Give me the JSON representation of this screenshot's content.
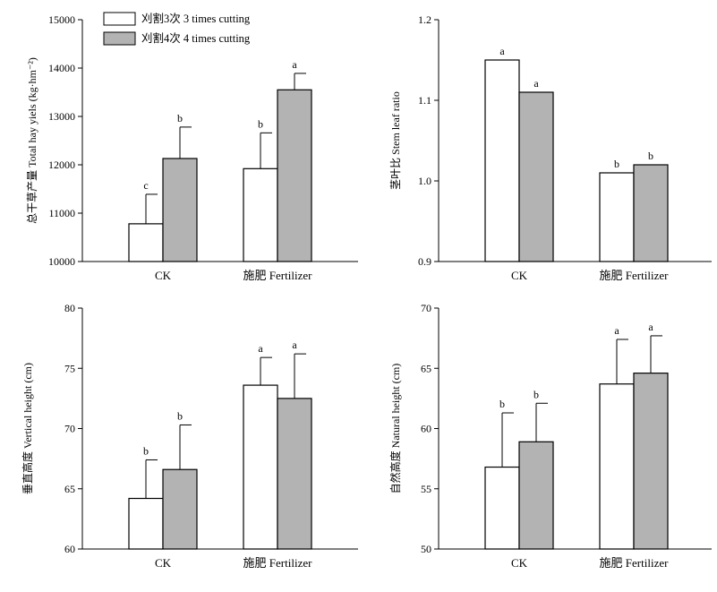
{
  "colors": {
    "series_1": "#ffffff",
    "series_2": "#b3b3b3",
    "stroke": "#000000"
  },
  "legend": {
    "items": [
      {
        "label": "刈割3次 3 times cutting",
        "color": "#ffffff"
      },
      {
        "label": "刈割4次 4 times cutting",
        "color": "#b3b3b3"
      }
    ],
    "placement": "top-left of first panel"
  },
  "chart_data": [
    {
      "type": "bar",
      "ylabel": "总干草产量 Total hay yiels (kg·hm⁻²)",
      "categories": [
        "CK",
        "施肥 Fertilizer"
      ],
      "ylim": [
        10000,
        15000
      ],
      "yticks": [
        10000,
        11000,
        12000,
        13000,
        14000,
        15000
      ],
      "tick_labels": [
        "10000",
        "11000",
        "12000",
        "13000",
        "14000",
        "15000"
      ],
      "series": [
        {
          "values": [
            10780,
            11920
          ],
          "errors": [
            610,
            740
          ],
          "sig": [
            "c",
            "b"
          ]
        },
        {
          "values": [
            12130,
            13550
          ],
          "errors": [
            650,
            340
          ],
          "sig": [
            "b",
            "a"
          ]
        }
      ]
    },
    {
      "type": "bar",
      "ylabel": "茎叶比 Stem leaf ratio",
      "categories": [
        "CK",
        "施肥 Fertilizer"
      ],
      "ylim": [
        0.9,
        1.2
      ],
      "yticks": [
        0.9,
        1.0,
        1.1,
        1.2
      ],
      "tick_labels": [
        "0.9",
        "1.0",
        "1.1",
        "1.2"
      ],
      "series": [
        {
          "values": [
            1.15,
            1.01
          ],
          "errors": [
            0,
            0
          ],
          "sig": [
            "a",
            "b"
          ]
        },
        {
          "values": [
            1.11,
            1.02
          ],
          "errors": [
            0,
            0
          ],
          "sig": [
            "a",
            "b"
          ]
        }
      ]
    },
    {
      "type": "bar",
      "ylabel": "垂直高度 Vertical height (cm)",
      "categories": [
        "CK",
        "施肥 Fertilizer"
      ],
      "ylim": [
        60,
        80
      ],
      "yticks": [
        60,
        65,
        70,
        75,
        80
      ],
      "tick_labels": [
        "60",
        "65",
        "70",
        "75",
        "80"
      ],
      "series": [
        {
          "values": [
            64.2,
            73.6
          ],
          "errors": [
            3.2,
            2.3
          ],
          "sig": [
            "b",
            "a"
          ]
        },
        {
          "values": [
            66.6,
            72.5
          ],
          "errors": [
            3.7,
            3.7
          ],
          "sig": [
            "b",
            "a"
          ]
        }
      ]
    },
    {
      "type": "bar",
      "ylabel": "自然高度 Natural height (cm)",
      "categories": [
        "CK",
        "施肥 Fertilizer"
      ],
      "ylim": [
        50,
        70
      ],
      "yticks": [
        50,
        55,
        60,
        65,
        70
      ],
      "tick_labels": [
        "50",
        "55",
        "60",
        "65",
        "70"
      ],
      "series": [
        {
          "values": [
            56.8,
            63.7
          ],
          "errors": [
            4.5,
            3.7
          ],
          "sig": [
            "b",
            "a"
          ]
        },
        {
          "values": [
            58.9,
            64.6
          ],
          "errors": [
            3.2,
            3.1
          ],
          "sig": [
            "b",
            "a"
          ]
        }
      ]
    }
  ]
}
